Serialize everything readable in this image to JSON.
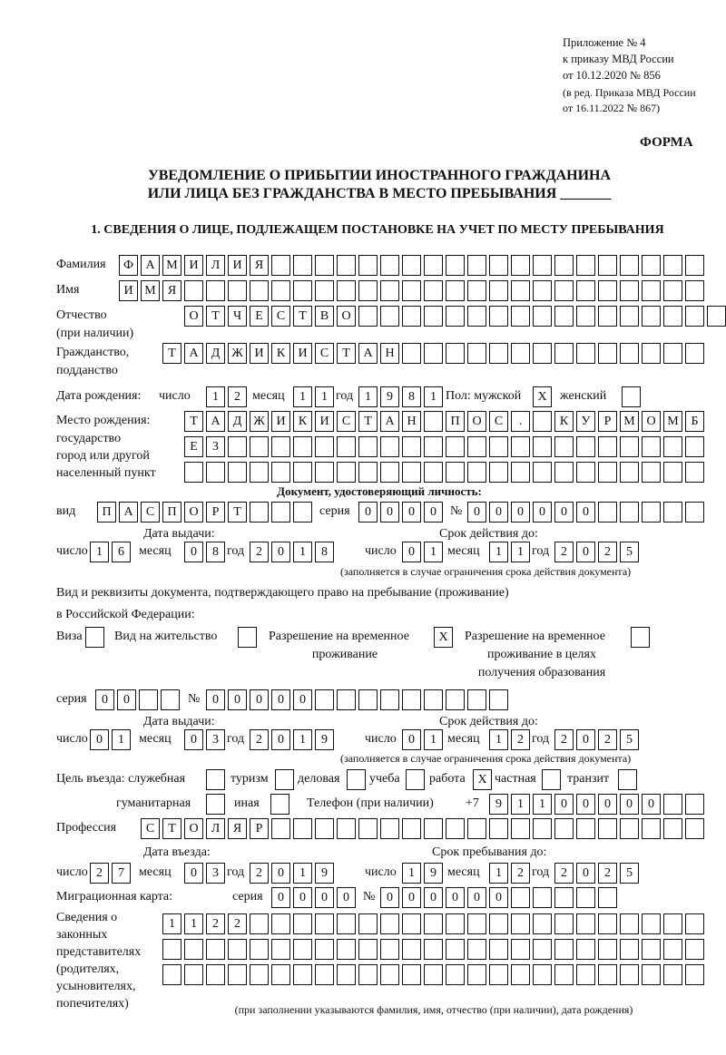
{
  "header": {
    "line1": "Приложение № 4",
    "line2": "к приказу МВД России",
    "line3": "от 10.12.2020 № 856",
    "line4": "(в ред. Приказа МВД России",
    "line5": "от 16.11.2022 № 867)",
    "form": "ФОРМА"
  },
  "title": {
    "line1": "УВЕДОМЛЕНИЕ О ПРИБЫТИИ ИНОСТРАННОГО ГРАЖДАНИНА",
    "line2": "ИЛИ ЛИЦА БЕЗ ГРАЖДАНСТВА В МЕСТО ПРЕБЫВАНИЯ _______"
  },
  "section1": "1. СВЕДЕНИЯ О ЛИЦЕ, ПОДЛЕЖАЩЕМ ПОСТАНОВКЕ НА УЧЕТ ПО МЕСТУ ПРЕБЫВАНИЯ",
  "labels": {
    "surname": "Фамилия",
    "name": "Имя",
    "patronymic": "Отчество",
    "patronymic2": "(при наличии)",
    "citizenship": "Гражданство,",
    "citizenship2": "подданство",
    "birth_date": "Дата рождения:",
    "day": "число",
    "month": "месяц",
    "year": "год",
    "sex": "Пол: мужской",
    "female": "женский",
    "birthplace1": "Место рождения:",
    "birthplace2": "государство",
    "birthplace3": "город или другой",
    "birthplace4": "населенный пункт",
    "id_doc": "Документ, удостоверяющий личность:",
    "kind": "вид",
    "series": "серия",
    "number": "№",
    "issue_date": "Дата выдачи:",
    "valid_until": "Срок действия до:",
    "valid_note": "(заполняется в случае ограничения срока действия документа)",
    "stay_doc1": "Вид и реквизиты документа, подтверждающего право на пребывание (проживание)",
    "stay_doc2": "в Российской Федерации:",
    "visa": "Виза",
    "residence": "Вид на жительство",
    "trp1": "Разрешение на временное",
    "trp2": "проживание",
    "trpe1": "Разрешение на временное",
    "trpe2": "проживание в целях",
    "trpe3": "получения образования",
    "purpose": "Цель въезда: служебная",
    "tourism": "туризм",
    "business": "деловая",
    "study": "учеба",
    "work": "работа",
    "private": "частная",
    "transit": "транзит",
    "humanitarian": "гуманитарная",
    "other": "иная",
    "phone": "Телефон (при наличии)",
    "phone_prefix": "+7",
    "profession": "Профессия",
    "entry_date": "Дата въезда:",
    "stay_until": "Срок пребывания до:",
    "migration_card": "Миграционная карта:",
    "reps1": "Сведения о",
    "reps2": "законных",
    "reps3": "представителях",
    "reps4": "(родителях,",
    "reps5": "усыновителях,",
    "reps6": "попечителях)",
    "reps_note": "(при заполнении указываются фамилия, имя, отчество (при наличии), дата рождения)"
  },
  "person": {
    "surname": [
      "Ф",
      "А",
      "М",
      "И",
      "Л",
      "И",
      "Я",
      "",
      "",
      "",
      "",
      "",
      "",
      "",
      "",
      "",
      "",
      "",
      "",
      "",
      "",
      "",
      "",
      "",
      "",
      "",
      ""
    ],
    "name": [
      "И",
      "М",
      "Я",
      "",
      "",
      "",
      "",
      "",
      "",
      "",
      "",
      "",
      "",
      "",
      "",
      "",
      "",
      "",
      "",
      "",
      "",
      "",
      "",
      "",
      "",
      "",
      ""
    ],
    "patronymic": [
      "О",
      "Т",
      "Ч",
      "Е",
      "С",
      "Т",
      "В",
      "О",
      "",
      "",
      "",
      "",
      "",
      "",
      "",
      "",
      "",
      "",
      "",
      "",
      "",
      "",
      "",
      "",
      ""
    ],
    "citizenship": [
      "Т",
      "А",
      "Д",
      "Ж",
      "И",
      "К",
      "И",
      "С",
      "Т",
      "А",
      "Н",
      "",
      "",
      "",
      "",
      "",
      "",
      "",
      "",
      "",
      "",
      "",
      "",
      "",
      ""
    ],
    "birth_day": [
      "1",
      "2"
    ],
    "birth_month": [
      "1",
      "1"
    ],
    "birth_year": [
      "1",
      "9",
      "8",
      "1"
    ],
    "sex_male": [
      "X"
    ],
    "sex_female": [
      ""
    ],
    "birthplace1": [
      "Т",
      "А",
      "Д",
      "Ж",
      "И",
      "К",
      "И",
      "С",
      "Т",
      "А",
      "Н",
      "",
      "П",
      "О",
      "С",
      ".",
      "",
      "К",
      "У",
      "Р",
      "М",
      "О",
      "М",
      "Б"
    ],
    "birthplace2": [
      "Е",
      "З",
      "",
      "",
      "",
      "",
      "",
      "",
      "",
      "",
      "",
      "",
      "",
      "",
      "",
      "",
      "",
      "",
      "",
      "",
      "",
      "",
      "",
      ""
    ],
    "birthplace3": [
      "",
      "",
      "",
      "",
      "",
      "",
      "",
      "",
      "",
      "",
      "",
      "",
      "",
      "",
      "",
      "",
      "",
      "",
      "",
      "",
      "",
      "",
      "",
      ""
    ]
  },
  "id_doc": {
    "kind": [
      "П",
      "А",
      "С",
      "П",
      "О",
      "Р",
      "Т",
      "",
      "",
      ""
    ],
    "series": [
      "0",
      "0",
      "0",
      "0"
    ],
    "number": [
      "0",
      "0",
      "0",
      "0",
      "0",
      "0",
      "",
      "",
      "",
      "",
      ""
    ],
    "issue_day": [
      "1",
      "6"
    ],
    "issue_month": [
      "0",
      "8"
    ],
    "issue_year": [
      "2",
      "0",
      "1",
      "8"
    ],
    "valid_day": [
      "0",
      "1"
    ],
    "valid_month": [
      "1",
      "1"
    ],
    "valid_year": [
      "2",
      "0",
      "2",
      "5"
    ]
  },
  "stay_doc": {
    "visa": [
      ""
    ],
    "residence": [
      ""
    ],
    "trp": [
      "X"
    ],
    "trpe": [
      ""
    ],
    "series": [
      "0",
      "0",
      "",
      ""
    ],
    "number": [
      "0",
      "0",
      "0",
      "0",
      "0",
      "",
      "",
      "",
      "",
      "",
      "",
      "",
      "",
      ""
    ],
    "issue_day": [
      "0",
      "1"
    ],
    "issue_month": [
      "0",
      "3"
    ],
    "issue_year": [
      "2",
      "0",
      "1",
      "9"
    ],
    "valid_day": [
      "0",
      "1"
    ],
    "valid_month": [
      "1",
      "2"
    ],
    "valid_year": [
      "2",
      "0",
      "2",
      "5"
    ]
  },
  "purpose": {
    "official": [
      ""
    ],
    "tourism": [
      ""
    ],
    "business": [
      ""
    ],
    "study": [
      ""
    ],
    "work": [
      "X"
    ],
    "private": [
      ""
    ],
    "transit": [
      ""
    ],
    "humanitarian": [
      ""
    ],
    "other": [
      ""
    ]
  },
  "phone": [
    "9",
    "1",
    "1",
    "0",
    "0",
    "0",
    "0",
    "0",
    "",
    ""
  ],
  "profession": [
    "С",
    "Т",
    "О",
    "Л",
    "Я",
    "Р",
    "",
    "",
    "",
    "",
    "",
    "",
    "",
    "",
    "",
    "",
    "",
    "",
    "",
    "",
    "",
    "",
    "",
    "",
    "",
    ""
  ],
  "entry": {
    "day": [
      "2",
      "7"
    ],
    "month": [
      "0",
      "3"
    ],
    "year": [
      "2",
      "0",
      "1",
      "9"
    ],
    "until_day": [
      "1",
      "9"
    ],
    "until_month": [
      "1",
      "2"
    ],
    "until_year": [
      "2",
      "0",
      "2",
      "5"
    ]
  },
  "migration_card": {
    "series": [
      "0",
      "0",
      "0",
      "0"
    ],
    "number": [
      "0",
      "0",
      "0",
      "0",
      "0",
      "0",
      "",
      "",
      "",
      "",
      ""
    ]
  },
  "reps": {
    "row1": [
      "1",
      "1",
      "2",
      "2",
      "",
      "",
      "",
      "",
      "",
      "",
      "",
      "",
      "",
      "",
      "",
      "",
      "",
      "",
      "",
      "",
      "",
      "",
      "",
      "",
      ""
    ],
    "row2": [
      "",
      "",
      "",
      "",
      "",
      "",
      "",
      "",
      "",
      "",
      "",
      "",
      "",
      "",
      "",
      "",
      "",
      "",
      "",
      "",
      "",
      "",
      "",
      "",
      ""
    ],
    "row3": [
      "",
      "",
      "",
      "",
      "",
      "",
      "",
      "",
      "",
      "",
      "",
      "",
      "",
      "",
      "",
      "",
      "",
      "",
      "",
      "",
      "",
      "",
      "",
      "",
      ""
    ]
  }
}
